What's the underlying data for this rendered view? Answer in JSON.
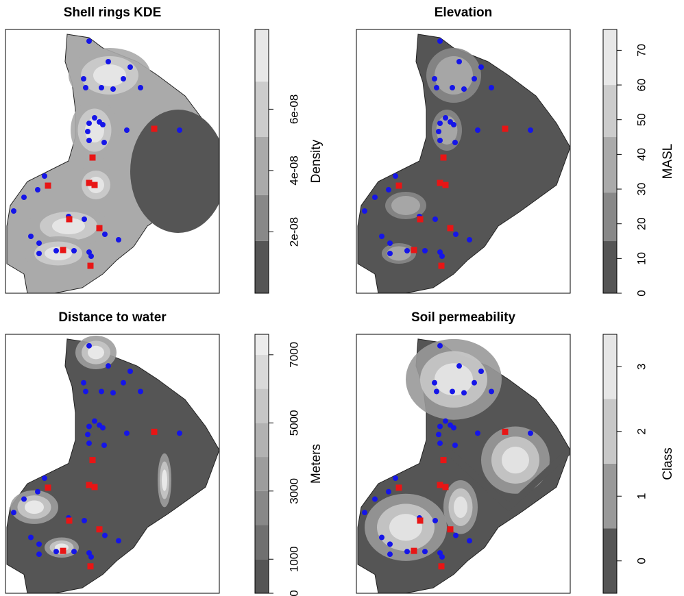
{
  "chart_data": [
    {
      "type": "raster-map",
      "title": "Shell rings KDE",
      "colorbar": {
        "label": "Density",
        "lim": [
          0,
          8.6e-08
        ],
        "ticks": [
          {
            "value": 2e-08,
            "label": "2e-08"
          },
          {
            "value": 4e-08,
            "label": "4e-08"
          },
          {
            "value": 6e-08,
            "label": "6e-08"
          }
        ],
        "breaks": [
          0,
          1.7e-08,
          3.2e-08,
          5.1e-08,
          6.9e-08,
          8.6e-08
        ],
        "colors": [
          "#555555",
          "#888888",
          "#aaaaaa",
          "#cccccc",
          "#e8e8e8"
        ]
      }
    },
    {
      "type": "raster-map",
      "title": "Elevation",
      "colorbar": {
        "label": "MASL",
        "lim": [
          0,
          76
        ],
        "ticks": [
          0,
          10,
          20,
          30,
          40,
          50,
          60,
          70
        ],
        "breaks": [
          0,
          15,
          29,
          45,
          60,
          76
        ],
        "colors": [
          "#555555",
          "#888888",
          "#aaaaaa",
          "#cccccc",
          "#e8e8e8"
        ]
      }
    },
    {
      "type": "raster-map",
      "title": "Distance to water",
      "colorbar": {
        "label": "Meters",
        "lim": [
          0,
          7600
        ],
        "ticks": [
          0,
          1000,
          3000,
          5000,
          7000
        ],
        "breaks": [
          0,
          1000,
          2000,
          3000,
          4000,
          5000,
          6000,
          7000,
          7600
        ],
        "colors": [
          "#555555",
          "#707070",
          "#888888",
          "#9d9d9d",
          "#b2b2b2",
          "#c6c6c6",
          "#d9d9d9",
          "#ececec"
        ]
      }
    },
    {
      "type": "raster-map",
      "title": "Soil permeability",
      "colorbar": {
        "label": "Class",
        "lim": [
          -0.5,
          3.5
        ],
        "ticks": [
          0,
          1,
          2,
          3
        ],
        "breaks": [
          -0.5,
          0.5,
          1.5,
          2.5,
          3.5
        ],
        "colors": [
          "#555555",
          "#999999",
          "#c8c8c8",
          "#e6e6e6"
        ]
      }
    }
  ]
}
